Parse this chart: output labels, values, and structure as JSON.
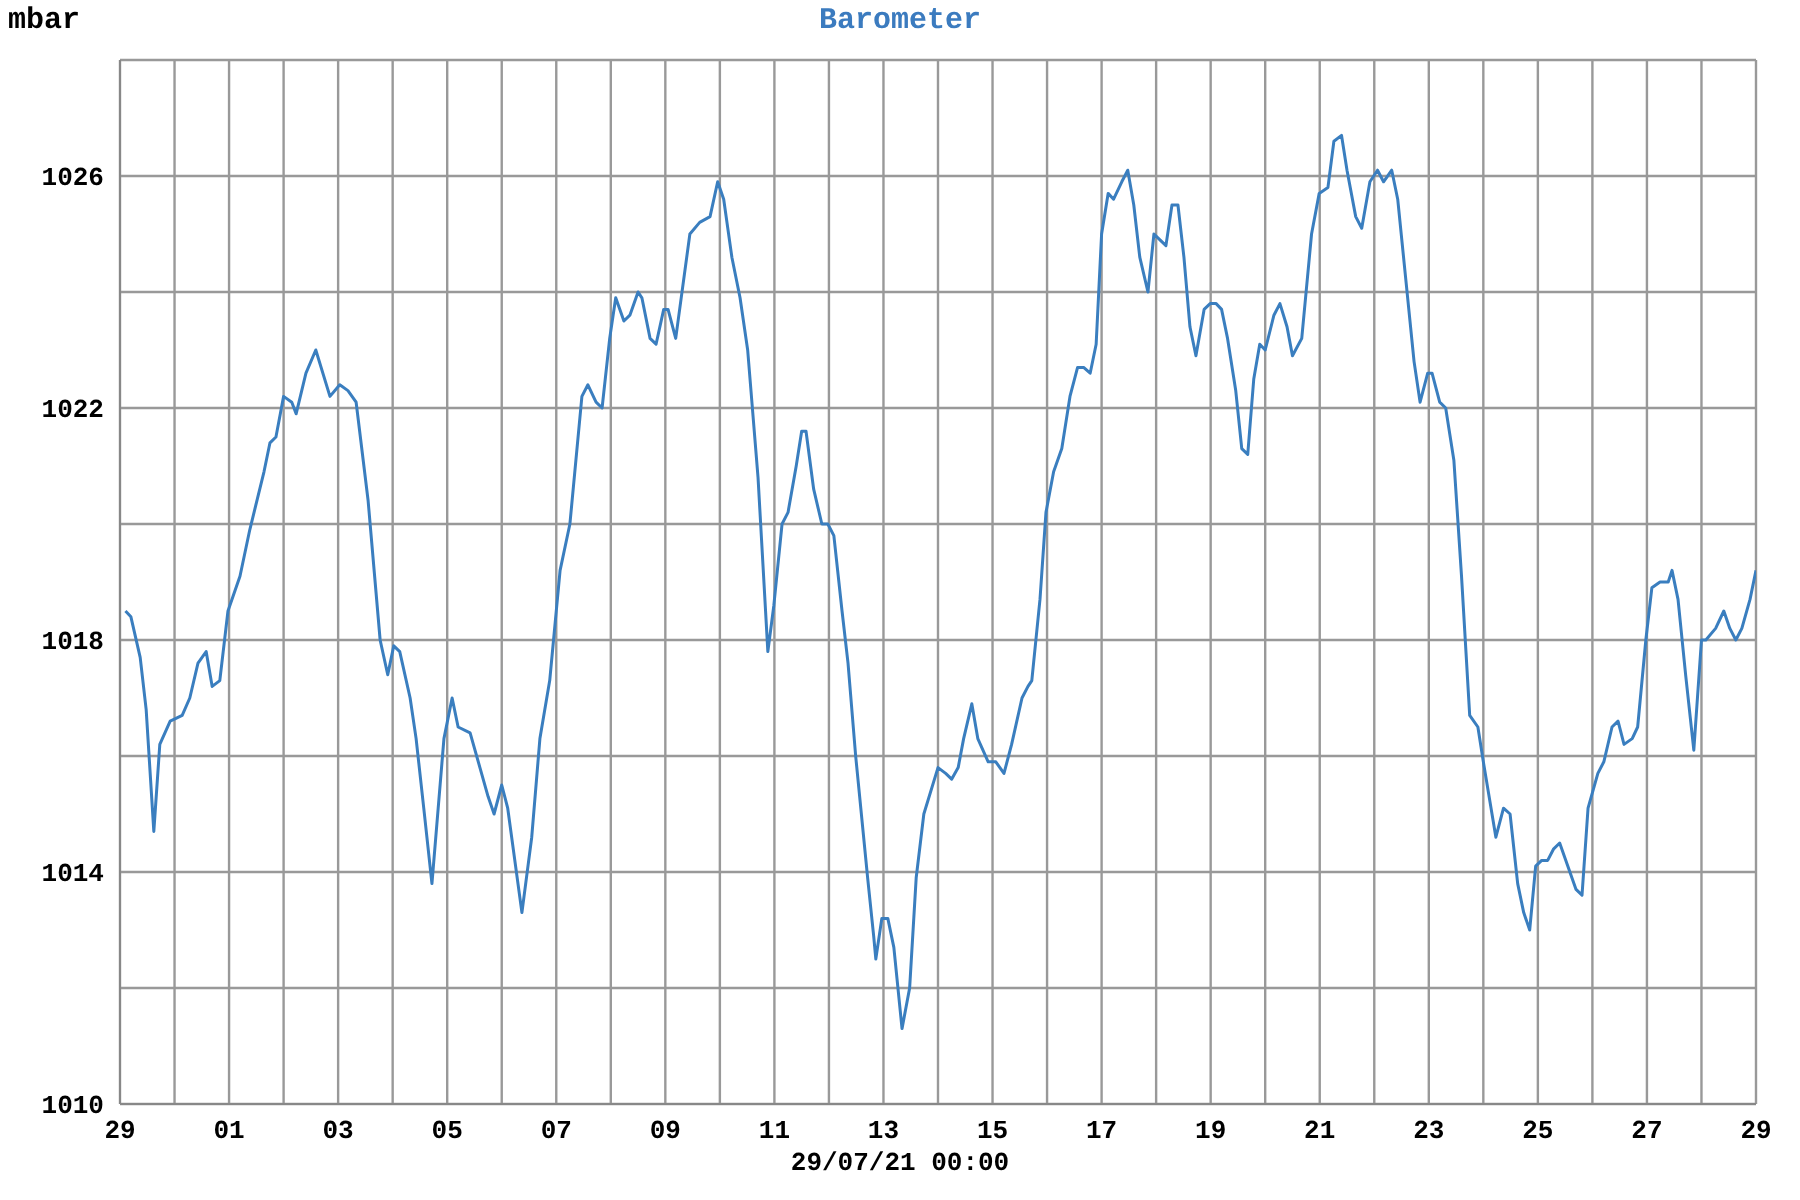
{
  "chart_data": {
    "type": "line",
    "title": "Barometer",
    "ylabel": "mbar",
    "xlabel": "29/07/21 00:00",
    "x": [
      "--06-29T02:24",
      "--06-29T04:48",
      "--06-29T08:53",
      "--06-29T11:31",
      "--06-29T14:53",
      "--06-29T17:31",
      "--06-29T22:05",
      "--06-30T03:22",
      "--06-30T06:43",
      "--06-30T10:19",
      "--06-30T13:55",
      "--06-30T16:34",
      "--06-30T19:55",
      "--06-30T23:31",
      "--07-01T04:48",
      "--07-01T09:07",
      "--07-01T15:22",
      "--07-01T18:00",
      "--07-01T20:38",
      "--07-02T00:00",
      "--07-02T03:36",
      "--07-02T05:31",
      "--07-02T09:50",
      "--07-02T14:10",
      "--07-02T20:24",
      "--07-03T00:43",
      "--07-03T04:19",
      "--07-03T07:55",
      "--07-03T13:12",
      "--07-03T18:29",
      "--07-03T21:50",
      "--07-04T00:29",
      "--07-04T03:07",
      "--07-04T07:41",
      "--07-04T10:19",
      "--07-04T13:41",
      "--07-04T17:17",
      "--07-04T22:34",
      "--07-05T02:10",
      "--07-05T04:48",
      "--07-05T10:05",
      "--07-05T14:24",
      "--07-05T18:00",
      "--07-05T20:38",
      "--07-06T00:00",
      "--07-06T02:38",
      "--07-06T08:53",
      "--07-06T13:12",
      "--07-06T16:48",
      "--07-06T21:07",
      "--07-07T01:41",
      "--07-07T06:00",
      "--07-07T11:17",
      "--07-07T13:55",
      "--07-07T17:31",
      "--07-07T20:10",
      "--07-07T23:31",
      "--07-08T02:10",
      "--07-08T05:46",
      "--07-08T08:24",
      "--07-08T12:00",
      "--07-08T13:41",
      "--07-08T17:17",
      "--07-08T19:55",
      "--07-08T23:17",
      "--07-09T01:12",
      "--07-09T04:34",
      "--07-09T10:48",
      "--07-09T15:07",
      "--07-09T19:41",
      "--07-09T23:02",
      "--07-10T01:41",
      "--07-10T05:17",
      "--07-10T08:53",
      "--07-10T12:14",
      "--07-10T16:48",
      "--07-10T21:07",
      "--07-10T23:46",
      "--07-11T03:22",
      "--07-11T06:00",
      "--07-11T09:36",
      "--07-11T12:00",
      "--07-11T13:55",
      "--07-11T17:17",
      "--07-11T20:53",
      "--07-11T23:31",
      "--07-12T02:10",
      "--07-12T05:46",
      "--07-12T08:24",
      "--07-12T11:46",
      "--07-12T17:02",
      "--07-12T19:41",
      "--07-12T20:38",
      "--07-12T23:17",
      "--07-13T01:55",
      "--07-13T04:34",
      "--07-13T08:10",
      "--07-13T11:31",
      "--07-13T14:24",
      "--07-13T17:46",
      "--07-14T00:00",
      "--07-14T03:22",
      "--07-14T06:00",
      "--07-14T08:53",
      "--07-14T11:17",
      "--07-14T14:53",
      "--07-14T17:31",
      "--07-14T22:05",
      "--07-15T01:26",
      "--07-15T05:02",
      "--07-15T08:24",
      "--07-15T12:58",
      "--07-15T15:36",
      "--07-15T17:17",
      "--07-15T20:53",
      "--07-15T23:31",
      "--07-16T02:53",
      "--07-16T06:29",
      "--07-16T10:05",
      "--07-16T13:26",
      "--07-16T16:05",
      "--07-16T18:58",
      "--07-16T21:36",
      "--07-17T00:00",
      "--07-17T02:53",
      "--07-17T05:17",
      "--07-17T08:53",
      "--07-17T11:31",
      "--07-17T14:10",
      "--07-17T16:48",
      "--07-17T20:24",
      "--07-17T23:02",
      "--07-18T01:41",
      "--07-18T04:19",
      "--07-18T06:58",
      "--07-18T09:36",
      "--07-18T12:14",
      "--07-18T14:53",
      "--07-18T17:31",
      "--07-18T21:07",
      "--07-18T23:46",
      "--07-19T02:24",
      "--07-19T04:48",
      "--07-19T07:26",
      "--07-19T11:02",
      "--07-19T13:41",
      "--07-19T16:19",
      "--07-19T18:58",
      "--07-19T21:36",
      "--07-20T00:00",
      "--07-20T03:50",
      "--07-20T06:29",
      "--07-20T09:36",
      "--07-20T12:00",
      "--07-20T16:05",
      "--07-20T20:24",
      "--07-20T23:46",
      "--07-21T03:36",
      "--07-21T06:14",
      "--07-21T09:36",
      "--07-21T12:00",
      "--07-21T15:50",
      "--07-21T18:29",
      "--07-21T22:05",
      "--07-22T01:26",
      "--07-22T04:05",
      "--07-22T07:41",
      "--07-22T10:19",
      "--07-22T13:55",
      "--07-22T17:31",
      "--07-22T20:10",
      "--07-22T23:31",
      "--07-23T01:26",
      "--07-23T04:48",
      "--07-23T07:26",
      "--07-23T11:02",
      "--07-23T14:24",
      "--07-23T18:00",
      "--07-23T21:36",
      "--07-24T00:00",
      "--07-24T05:31",
      "--07-24T08:53",
      "--07-24T11:46",
      "--07-24T15:07",
      "--07-24T17:46",
      "--07-24T20:24",
      "--07-24T23:02",
      "--07-25T01:41",
      "--07-25T04:19",
      "--07-25T06:58",
      "--07-25T09:36",
      "--07-25T13:12",
      "--07-25T16:48",
      "--07-25T19:26",
      "--07-25T22:05",
      "--07-26T02:24",
      "--07-26T05:02",
      "--07-26T08:38",
      "--07-26T11:17",
      "--07-26T13:55",
      "--07-26T17:31",
      "--07-26T19:55",
      "--07-26T23:31",
      "--07-27T02:10",
      "--07-27T05:46",
      "--07-27T09:22",
      "--07-27T11:02",
      "--07-27T13:41",
      "--07-27T17:02",
      "--07-27T20:38",
      "--07-28T00:00",
      "--07-28T01:55",
      "--07-28T06:14",
      "--07-28T09:50",
      "--07-28T12:29",
      "--07-28T15:07",
      "--07-28T17:46",
      "--07-28T21:22",
      "--07-29T00:00"
    ],
    "series": [
      {
        "color": "#3a7ebf",
        "values": [
          1018.5,
          1018.4,
          1017.7,
          1016.8,
          1014.7,
          1016.2,
          1016.6,
          1016.7,
          1017.0,
          1017.6,
          1017.8,
          1017.2,
          1017.3,
          1018.5,
          1019.1,
          1019.9,
          1020.9,
          1021.4,
          1021.5,
          1022.2,
          1022.1,
          1021.9,
          1022.6,
          1023.0,
          1022.2,
          1022.4,
          1022.3,
          1022.1,
          1020.4,
          1018.0,
          1017.4,
          1017.9,
          1017.8,
          1017.0,
          1016.3,
          1015.1,
          1013.8,
          1016.3,
          1017.0,
          1016.5,
          1016.4,
          1015.8,
          1015.3,
          1015.0,
          1015.5,
          1015.1,
          1013.3,
          1014.6,
          1016.3,
          1017.3,
          1019.2,
          1020.0,
          1022.2,
          1022.4,
          1022.1,
          1022.0,
          1023.2,
          1023.9,
          1023.5,
          1023.6,
          1024.0,
          1023.9,
          1023.2,
          1023.1,
          1023.7,
          1023.7,
          1023.2,
          1025.0,
          1025.2,
          1025.3,
          1025.9,
          1025.6,
          1024.6,
          1023.9,
          1023.0,
          1020.8,
          1017.8,
          1018.6,
          1020.0,
          1020.2,
          1021.0,
          1021.6,
          1021.6,
          1020.6,
          1020.0,
          1020.0,
          1019.8,
          1018.5,
          1017.6,
          1016.0,
          1013.9,
          1012.9,
          1012.5,
          1013.2,
          1013.2,
          1012.7,
          1011.3,
          1012.0,
          1013.9,
          1015.0,
          1015.8,
          1015.7,
          1015.6,
          1015.8,
          1016.3,
          1016.9,
          1016.3,
          1015.9,
          1015.9,
          1015.7,
          1016.2,
          1017.0,
          1017.2,
          1017.3,
          1018.7,
          1020.2,
          1020.9,
          1021.3,
          1022.2,
          1022.7,
          1022.7,
          1022.6,
          1023.1,
          1025.0,
          1025.7,
          1025.6,
          1025.9,
          1026.1,
          1025.5,
          1024.6,
          1024.0,
          1025.0,
          1024.9,
          1024.8,
          1025.5,
          1025.5,
          1024.6,
          1023.4,
          1022.9,
          1023.7,
          1023.8,
          1023.8,
          1023.7,
          1023.2,
          1022.3,
          1021.3,
          1021.2,
          1022.5,
          1023.1,
          1023.0,
          1023.6,
          1023.8,
          1023.4,
          1022.9,
          1023.2,
          1025.0,
          1025.7,
          1025.8,
          1026.6,
          1026.7,
          1026.1,
          1025.3,
          1025.1,
          1025.9,
          1026.1,
          1025.9,
          1026.1,
          1025.6,
          1024.2,
          1022.8,
          1022.1,
          1022.6,
          1022.6,
          1022.1,
          1022.0,
          1021.1,
          1019.1,
          1016.7,
          1016.5,
          1015.9,
          1014.6,
          1015.1,
          1015.0,
          1013.8,
          1013.3,
          1013.0,
          1014.1,
          1014.2,
          1014.2,
          1014.4,
          1014.5,
          1014.1,
          1013.7,
          1013.6,
          1015.1,
          1015.7,
          1015.9,
          1016.5,
          1016.6,
          1016.2,
          1016.3,
          1016.5,
          1018.0,
          1018.9,
          1019.0,
          1019.0,
          1019.2,
          1018.7,
          1017.4,
          1016.1,
          1018.0,
          1018.0,
          1018.2,
          1018.5,
          1018.2,
          1018.0,
          1018.2,
          1018.7,
          1019.2
        ]
      }
    ],
    "xlim": [
      "--06-29",
      "--07-29"
    ],
    "xticks": [
      {
        "value": "--06-29",
        "label": "29"
      },
      {
        "value": "--06-30",
        "label": null
      },
      {
        "value": "--07-01",
        "label": "01"
      },
      {
        "value": "--07-02",
        "label": null
      },
      {
        "value": "--07-03",
        "label": "03"
      },
      {
        "value": "--07-04",
        "label": null
      },
      {
        "value": "--07-05",
        "label": "05"
      },
      {
        "value": "--07-06",
        "label": null
      },
      {
        "value": "--07-07",
        "label": "07"
      },
      {
        "value": "--07-08",
        "label": null
      },
      {
        "value": "--07-09",
        "label": "09"
      },
      {
        "value": "--07-10",
        "label": null
      },
      {
        "value": "--07-11",
        "label": "11"
      },
      {
        "value": "--07-12",
        "label": null
      },
      {
        "value": "--07-13",
        "label": "13"
      },
      {
        "value": "--07-14",
        "label": null
      },
      {
        "value": "--07-15",
        "label": "15"
      },
      {
        "value": "--07-16",
        "label": null
      },
      {
        "value": "--07-17",
        "label": "17"
      },
      {
        "value": "--07-18",
        "label": null
      },
      {
        "value": "--07-19",
        "label": "19"
      },
      {
        "value": "--07-20",
        "label": null
      },
      {
        "value": "--07-21",
        "label": "21"
      },
      {
        "value": "--07-22",
        "label": null
      },
      {
        "value": "--07-23",
        "label": "23"
      },
      {
        "value": "--07-24",
        "label": null
      },
      {
        "value": "--07-25",
        "label": "25"
      },
      {
        "value": "--07-26",
        "label": null
      },
      {
        "value": "--07-27",
        "label": "27"
      },
      {
        "value": "--07-28",
        "label": null
      },
      {
        "value": "--07-29",
        "label": "29"
      }
    ],
    "ylim": [
      1010,
      1028
    ],
    "yticks": [
      1010,
      {
        "value": 1012,
        "label": null
      },
      1014,
      {
        "value": 1016,
        "label": null
      },
      1018,
      {
        "value": 1020,
        "label": null
      },
      1022,
      {
        "value": 1024,
        "label": null
      },
      1026,
      {
        "value": 1028,
        "label": null
      }
    ],
    "grid": true,
    "marker": "none",
    "line_style": "solid"
  }
}
